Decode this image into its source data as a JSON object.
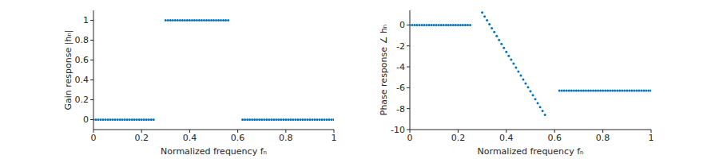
{
  "chart_data": [
    {
      "type": "scatter",
      "x_label": "Normalized frequency fₙ",
      "y_label": "Gain response |hₙ|",
      "color": "#0072bd",
      "marker": ".",
      "grid": false,
      "xlim": [
        0,
        1
      ],
      "xticks": [
        0,
        0.2,
        0.4,
        0.6,
        0.8,
        1
      ],
      "ylim": [
        -0.1,
        1.1
      ],
      "yticks": [
        0,
        0.2,
        0.4,
        0.6,
        0.8,
        1
      ],
      "x": [
        0,
        0.01,
        0.02,
        0.03,
        0.04,
        0.05,
        0.06,
        0.07,
        0.08,
        0.09,
        0.1,
        0.11,
        0.12,
        0.13,
        0.14,
        0.15,
        0.16,
        0.17,
        0.18,
        0.19,
        0.2,
        0.21,
        0.22,
        0.23,
        0.24,
        0.25,
        0.3,
        0.31,
        0.32,
        0.33,
        0.34,
        0.35,
        0.36,
        0.37,
        0.38,
        0.39,
        0.4,
        0.41,
        0.42,
        0.43,
        0.44,
        0.45,
        0.46,
        0.47,
        0.48,
        0.49,
        0.5,
        0.51,
        0.52,
        0.53,
        0.54,
        0.55,
        0.56,
        0.62,
        0.63,
        0.64,
        0.65,
        0.66,
        0.67,
        0.68,
        0.69,
        0.7,
        0.71,
        0.72,
        0.73,
        0.74,
        0.75,
        0.76,
        0.77,
        0.78,
        0.79,
        0.8,
        0.81,
        0.82,
        0.83,
        0.84,
        0.85,
        0.86,
        0.87,
        0.88,
        0.89,
        0.9,
        0.91,
        0.92,
        0.93,
        0.94,
        0.95,
        0.96,
        0.97,
        0.98,
        0.99,
        1
      ],
      "values": [
        0,
        0,
        0,
        0,
        0,
        0,
        0,
        0,
        0,
        0,
        0,
        0,
        0,
        0,
        0,
        0,
        0,
        0,
        0,
        0,
        0,
        0,
        0,
        0,
        0,
        0,
        1,
        1,
        1,
        1,
        1,
        1,
        1,
        1,
        1,
        1,
        1,
        1,
        1,
        1,
        1,
        1,
        1,
        1,
        1,
        1,
        1,
        1,
        1,
        1,
        1,
        1,
        1,
        0,
        0,
        0,
        0,
        0,
        0,
        0,
        0,
        0,
        0,
        0,
        0,
        0,
        0,
        0,
        0,
        0,
        0,
        0,
        0,
        0,
        0,
        0,
        0,
        0,
        0,
        0,
        0,
        0,
        0,
        0,
        0,
        0,
        0,
        0,
        0,
        0,
        0,
        0
      ]
    },
    {
      "type": "scatter",
      "x_label": "Normalized frequency fₙ",
      "y_label": "Phase response ∠ hₙ",
      "color": "#0072bd",
      "marker": ".",
      "grid": false,
      "xlim": [
        0,
        1
      ],
      "xticks": [
        0,
        0.2,
        0.4,
        0.6,
        0.8,
        1
      ],
      "ylim": [
        -10,
        1.4
      ],
      "yticks": [
        -10,
        -8,
        -6,
        -4,
        -2,
        0
      ],
      "x": [
        0,
        0.01,
        0.02,
        0.03,
        0.04,
        0.05,
        0.06,
        0.07,
        0.08,
        0.09,
        0.1,
        0.11,
        0.12,
        0.13,
        0.14,
        0.15,
        0.16,
        0.17,
        0.18,
        0.19,
        0.2,
        0.21,
        0.22,
        0.23,
        0.24,
        0.25,
        0.3,
        0.31,
        0.32,
        0.33,
        0.34,
        0.35,
        0.36,
        0.37,
        0.38,
        0.39,
        0.4,
        0.41,
        0.42,
        0.43,
        0.44,
        0.45,
        0.46,
        0.47,
        0.48,
        0.49,
        0.5,
        0.51,
        0.52,
        0.53,
        0.54,
        0.55,
        0.56,
        0.62,
        0.63,
        0.64,
        0.65,
        0.66,
        0.67,
        0.68,
        0.69,
        0.7,
        0.71,
        0.72,
        0.73,
        0.74,
        0.75,
        0.76,
        0.77,
        0.78,
        0.79,
        0.8,
        0.81,
        0.82,
        0.83,
        0.84,
        0.85,
        0.86,
        0.87,
        0.88,
        0.89,
        0.9,
        0.91,
        0.92,
        0.93,
        0.94,
        0.95,
        0.96,
        0.97,
        0.98,
        0.99,
        1
      ],
      "values": [
        0,
        0,
        0,
        0,
        0,
        0,
        0,
        0,
        0,
        0,
        0,
        0,
        0,
        0,
        0,
        0,
        0,
        0,
        0,
        0,
        0,
        0,
        0,
        0,
        0,
        0,
        1.2,
        0.82,
        0.45,
        0.07,
        -0.31,
        -0.68,
        -1.06,
        -1.44,
        -1.82,
        -2.19,
        -2.57,
        -2.95,
        -3.32,
        -3.7,
        -4.08,
        -4.45,
        -4.83,
        -5.21,
        -5.59,
        -5.96,
        -6.34,
        -6.72,
        -7.09,
        -7.47,
        -7.85,
        -8.22,
        -8.6,
        -6.28,
        -6.28,
        -6.28,
        -6.28,
        -6.28,
        -6.28,
        -6.28,
        -6.28,
        -6.28,
        -6.28,
        -6.28,
        -6.28,
        -6.28,
        -6.28,
        -6.28,
        -6.28,
        -6.28,
        -6.28,
        -6.28,
        -6.28,
        -6.28,
        -6.28,
        -6.28,
        -6.28,
        -6.28,
        -6.28,
        -6.28,
        -6.28,
        -6.28,
        -6.28,
        -6.28,
        -6.28,
        -6.28,
        -6.28,
        -6.28,
        -6.28,
        -6.28,
        -6.28,
        -6.28
      ]
    }
  ]
}
